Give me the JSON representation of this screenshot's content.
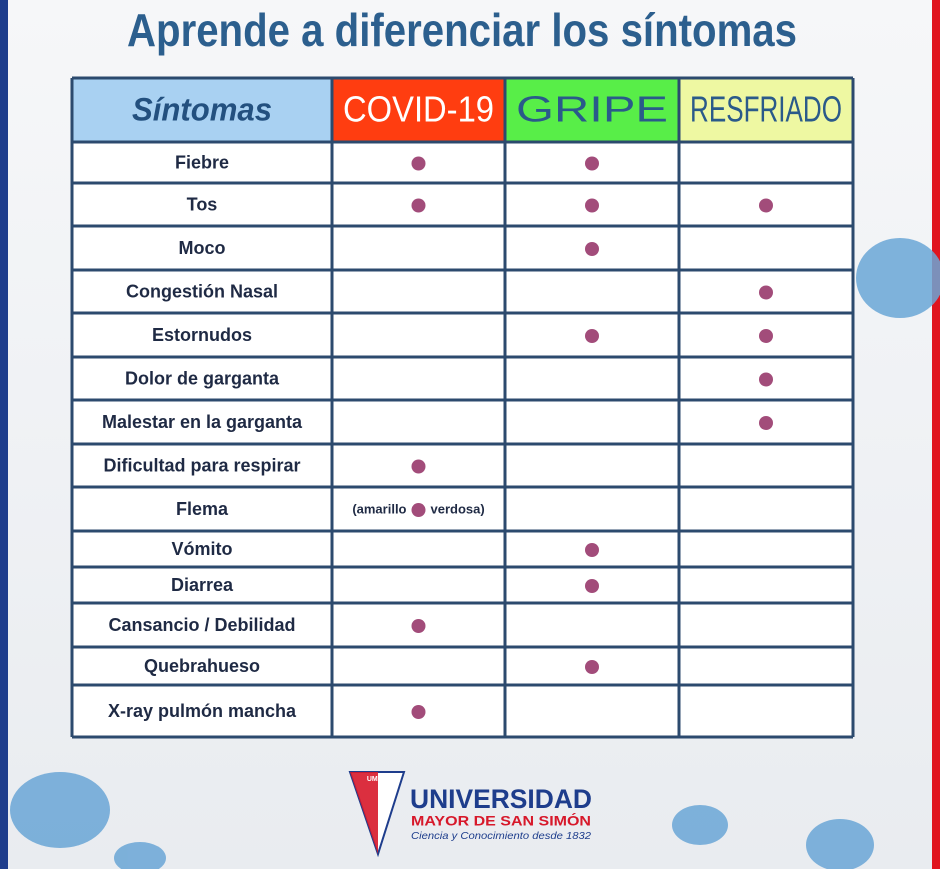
{
  "header": {
    "title": "Aprende a diferenciar los síntomas"
  },
  "table": {
    "columns": [
      {
        "label": "Síntomas",
        "fill": "#a9d1f2",
        "text": "#23507f"
      },
      {
        "label": "COVID-19",
        "fill": "#ff3d10",
        "text": "#ffffff"
      },
      {
        "label": "GRIPE",
        "fill": "#58ee48",
        "text": "#2a5a8a"
      },
      {
        "label": "RESFRIADO",
        "fill": "#eef8a2",
        "text": "#2a5a8a"
      }
    ],
    "dot_color": "#a24c7a",
    "rows": [
      {
        "label": "Fiebre",
        "marks": [
          true,
          true,
          false
        ]
      },
      {
        "label": "Tos",
        "marks": [
          true,
          true,
          true
        ]
      },
      {
        "label": "Moco",
        "marks": [
          false,
          true,
          false
        ]
      },
      {
        "label": "Congestión Nasal",
        "marks": [
          false,
          false,
          true
        ]
      },
      {
        "label": "Estornudos",
        "marks": [
          false,
          true,
          true
        ]
      },
      {
        "label": "Dolor de garganta",
        "marks": [
          false,
          false,
          true
        ]
      },
      {
        "label": "Malestar en la garganta",
        "marks": [
          false,
          false,
          true
        ]
      },
      {
        "label": "Dificultad para respirar",
        "marks": [
          true,
          false,
          false
        ]
      },
      {
        "label": "Flema",
        "marks": [
          true,
          false,
          false
        ],
        "note": [
          "(amarillo",
          "verdosa)"
        ]
      },
      {
        "label": "Vómito",
        "marks": [
          false,
          true,
          false
        ]
      },
      {
        "label": "Diarrea",
        "marks": [
          false,
          true,
          false
        ]
      },
      {
        "label": "Cansancio / Debilidad",
        "marks": [
          true,
          false,
          false
        ]
      },
      {
        "label": "Quebrahueso",
        "marks": [
          false,
          true,
          false
        ]
      },
      {
        "label": "X-ray pulmón mancha",
        "marks": [
          true,
          false,
          false
        ]
      }
    ]
  },
  "logo": {
    "emblem": "UMSS",
    "name": "UNIVERSIDAD",
    "subname": "MAYOR DE SAN SIMÓN",
    "motto": "Ciencia y Conocimiento desde 1832"
  }
}
